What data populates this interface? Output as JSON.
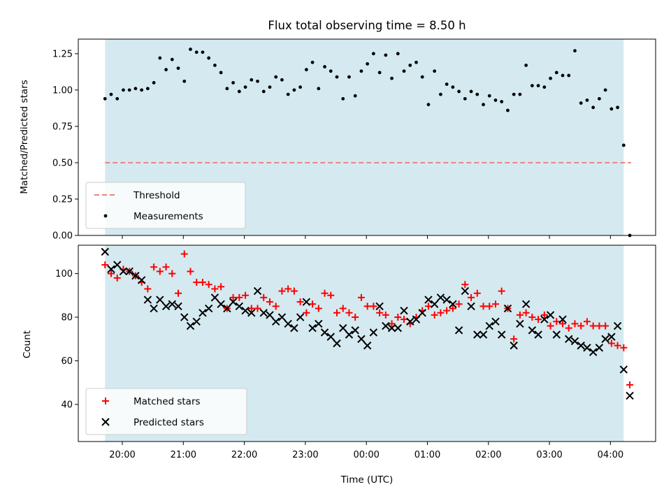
{
  "chart_data": [
    {
      "type": "scatter",
      "title": "Flux total observing time = 8.50 h",
      "xlabel": "",
      "ylabel": "Matched/Predicted stars",
      "ylim": [
        0,
        1.35
      ],
      "yticks": [
        0,
        0.25,
        0.5,
        0.75,
        1.0,
        1.25
      ],
      "ytick_labels": [
        "0.00",
        "0.25",
        "0.50",
        "0.75",
        "1.00",
        "1.25"
      ],
      "observing_window": [
        "19:43",
        "04:13"
      ],
      "shade_color": "#d4eaf0",
      "threshold": {
        "name": "Threshold",
        "value": 0.5,
        "color": "#f08080"
      },
      "legend": {
        "position": "lower-left",
        "entries": [
          "Threshold",
          "Measurements"
        ]
      },
      "series": [
        {
          "name": "Measurements",
          "color": "#000000",
          "x": [
            "19:43",
            "19:49",
            "19:55",
            "20:01",
            "20:07",
            "20:13",
            "20:19",
            "20:25",
            "20:31",
            "20:37",
            "20:43",
            "20:49",
            "20:55",
            "21:01",
            "21:07",
            "21:13",
            "21:19",
            "21:25",
            "21:31",
            "21:37",
            "21:43",
            "21:49",
            "21:55",
            "22:01",
            "22:07",
            "22:13",
            "22:19",
            "22:25",
            "22:31",
            "22:37",
            "22:43",
            "22:49",
            "22:55",
            "23:01",
            "23:07",
            "23:13",
            "23:19",
            "23:25",
            "23:31",
            "23:37",
            "23:43",
            "23:49",
            "23:55",
            "00:01",
            "00:07",
            "00:13",
            "00:19",
            "00:25",
            "00:31",
            "00:37",
            "00:43",
            "00:49",
            "00:55",
            "01:01",
            "01:07",
            "01:13",
            "01:19",
            "01:25",
            "01:31",
            "01:37",
            "01:43",
            "01:49",
            "01:55",
            "02:01",
            "02:07",
            "02:13",
            "02:19",
            "02:25",
            "02:31",
            "02:37",
            "02:43",
            "02:49",
            "02:55",
            "03:01",
            "03:07",
            "03:13",
            "03:19",
            "03:25",
            "03:31",
            "03:37",
            "03:43",
            "03:49",
            "03:55",
            "04:01",
            "04:07",
            "04:13",
            "04:19"
          ],
          "y": [
            0.94,
            0.97,
            0.94,
            1.0,
            1.0,
            1.01,
            1.0,
            1.01,
            1.05,
            1.22,
            1.14,
            1.21,
            1.15,
            1.06,
            1.28,
            1.26,
            1.26,
            1.22,
            1.17,
            1.12,
            1.01,
            1.05,
            0.99,
            1.02,
            1.07,
            1.06,
            0.99,
            1.02,
            1.09,
            1.07,
            0.97,
            1.0,
            1.02,
            1.14,
            1.19,
            1.01,
            1.16,
            1.13,
            1.09,
            0.94,
            1.09,
            0.96,
            1.13,
            1.18,
            1.25,
            1.12,
            1.24,
            1.08,
            1.25,
            1.13,
            1.17,
            1.19,
            1.09,
            0.9,
            1.13,
            0.97,
            1.04,
            1.02,
            0.99,
            0.94,
            0.99,
            0.97,
            0.9,
            0.96,
            0.93,
            0.92,
            0.86,
            0.97,
            0.97,
            1.17,
            1.03,
            1.03,
            1.02,
            1.08,
            1.12,
            1.1,
            1.1,
            1.27,
            0.91,
            0.93,
            0.88,
            0.94,
            1.0,
            0.87,
            0.88,
            0.62,
            0.0
          ]
        }
      ]
    },
    {
      "type": "scatter",
      "title": "",
      "xlabel": "Time (UTC)",
      "ylabel": "Count",
      "ylim": [
        23,
        113
      ],
      "yticks": [
        40,
        60,
        80,
        100
      ],
      "xtick_labels": [
        "20:00",
        "21:00",
        "22:00",
        "23:00",
        "00:00",
        "01:00",
        "02:00",
        "03:00",
        "04:00"
      ],
      "legend": {
        "position": "lower-left",
        "entries": [
          "Matched stars",
          "Predicted stars"
        ]
      },
      "series": [
        {
          "name": "Matched stars",
          "marker": "+",
          "color": "#ff0000",
          "x": [
            "19:43",
            "19:49",
            "19:55",
            "20:01",
            "20:07",
            "20:13",
            "20:19",
            "20:25",
            "20:31",
            "20:37",
            "20:43",
            "20:49",
            "20:55",
            "21:01",
            "21:07",
            "21:13",
            "21:19",
            "21:25",
            "21:31",
            "21:37",
            "21:43",
            "21:49",
            "21:55",
            "22:01",
            "22:07",
            "22:13",
            "22:19",
            "22:25",
            "22:31",
            "22:37",
            "22:43",
            "22:49",
            "22:55",
            "23:01",
            "23:07",
            "23:13",
            "23:19",
            "23:25",
            "23:31",
            "23:37",
            "23:43",
            "23:49",
            "23:55",
            "00:01",
            "00:07",
            "00:13",
            "00:19",
            "00:25",
            "00:31",
            "00:37",
            "00:43",
            "00:49",
            "00:55",
            "01:01",
            "01:07",
            "01:13",
            "01:19",
            "01:25",
            "01:31",
            "01:37",
            "01:43",
            "01:49",
            "01:55",
            "02:01",
            "02:07",
            "02:13",
            "02:19",
            "02:25",
            "02:31",
            "02:37",
            "02:43",
            "02:49",
            "02:55",
            "03:01",
            "03:07",
            "03:13",
            "03:19",
            "03:25",
            "03:31",
            "03:37",
            "03:43",
            "03:49",
            "03:55",
            "04:01",
            "04:07",
            "04:13",
            "04:19"
          ],
          "y": [
            104,
            100,
            98,
            102,
            101,
            99,
            96,
            93,
            103,
            101,
            103,
            100,
            91,
            109,
            101,
            96,
            96,
            95,
            93,
            94,
            84,
            89,
            89,
            90,
            84,
            84,
            89,
            87,
            85,
            92,
            93,
            92,
            87,
            82,
            86,
            84,
            91,
            90,
            82,
            84,
            82,
            80,
            89,
            85,
            85,
            82,
            81,
            77,
            80,
            79,
            77,
            80,
            83,
            85,
            81,
            82,
            83,
            84,
            86,
            95,
            89,
            91,
            85,
            85,
            86,
            92,
            84,
            70,
            81,
            82,
            80,
            79,
            81,
            76,
            78,
            77,
            75,
            77,
            76,
            78,
            76,
            76,
            76,
            68,
            67,
            66,
            49
          ]
        },
        {
          "name": "Predicted stars",
          "marker": "x",
          "color": "#000000",
          "x": [
            "19:43",
            "19:49",
            "19:55",
            "20:01",
            "20:07",
            "20:13",
            "20:19",
            "20:25",
            "20:31",
            "20:37",
            "20:43",
            "20:49",
            "20:55",
            "21:01",
            "21:07",
            "21:13",
            "21:19",
            "21:25",
            "21:31",
            "21:37",
            "21:43",
            "21:49",
            "21:55",
            "22:01",
            "22:07",
            "22:13",
            "22:19",
            "22:25",
            "22:31",
            "22:37",
            "22:43",
            "22:49",
            "22:55",
            "23:01",
            "23:07",
            "23:13",
            "23:19",
            "23:25",
            "23:31",
            "23:37",
            "23:43",
            "23:49",
            "23:55",
            "00:01",
            "00:07",
            "00:13",
            "00:19",
            "00:25",
            "00:31",
            "00:37",
            "00:43",
            "00:49",
            "00:55",
            "01:01",
            "01:07",
            "01:13",
            "01:19",
            "01:25",
            "01:31",
            "01:37",
            "01:43",
            "01:49",
            "01:55",
            "02:01",
            "02:07",
            "02:13",
            "02:19",
            "02:25",
            "02:31",
            "02:37",
            "02:43",
            "02:49",
            "02:55",
            "03:01",
            "03:07",
            "03:13",
            "03:19",
            "03:25",
            "03:31",
            "03:37",
            "03:43",
            "03:49",
            "03:55",
            "04:01",
            "04:07",
            "04:13",
            "04:19"
          ],
          "y": [
            110,
            102,
            104,
            101,
            101,
            99,
            97,
            88,
            84,
            88,
            85,
            86,
            85,
            80,
            76,
            78,
            82,
            84,
            89,
            86,
            84,
            87,
            85,
            83,
            82,
            92,
            82,
            81,
            78,
            80,
            77,
            75,
            80,
            87,
            75,
            77,
            73,
            71,
            68,
            75,
            72,
            74,
            70,
            67,
            73,
            85,
            76,
            75,
            75,
            83,
            78,
            79,
            82,
            88,
            86,
            89,
            88,
            86,
            74,
            92,
            85,
            72,
            72,
            76,
            78,
            72,
            84,
            67,
            77,
            86,
            74,
            72,
            79,
            81,
            72,
            79,
            70,
            69,
            67,
            66,
            64,
            66,
            70,
            71,
            76,
            56,
            44
          ]
        }
      ]
    }
  ]
}
